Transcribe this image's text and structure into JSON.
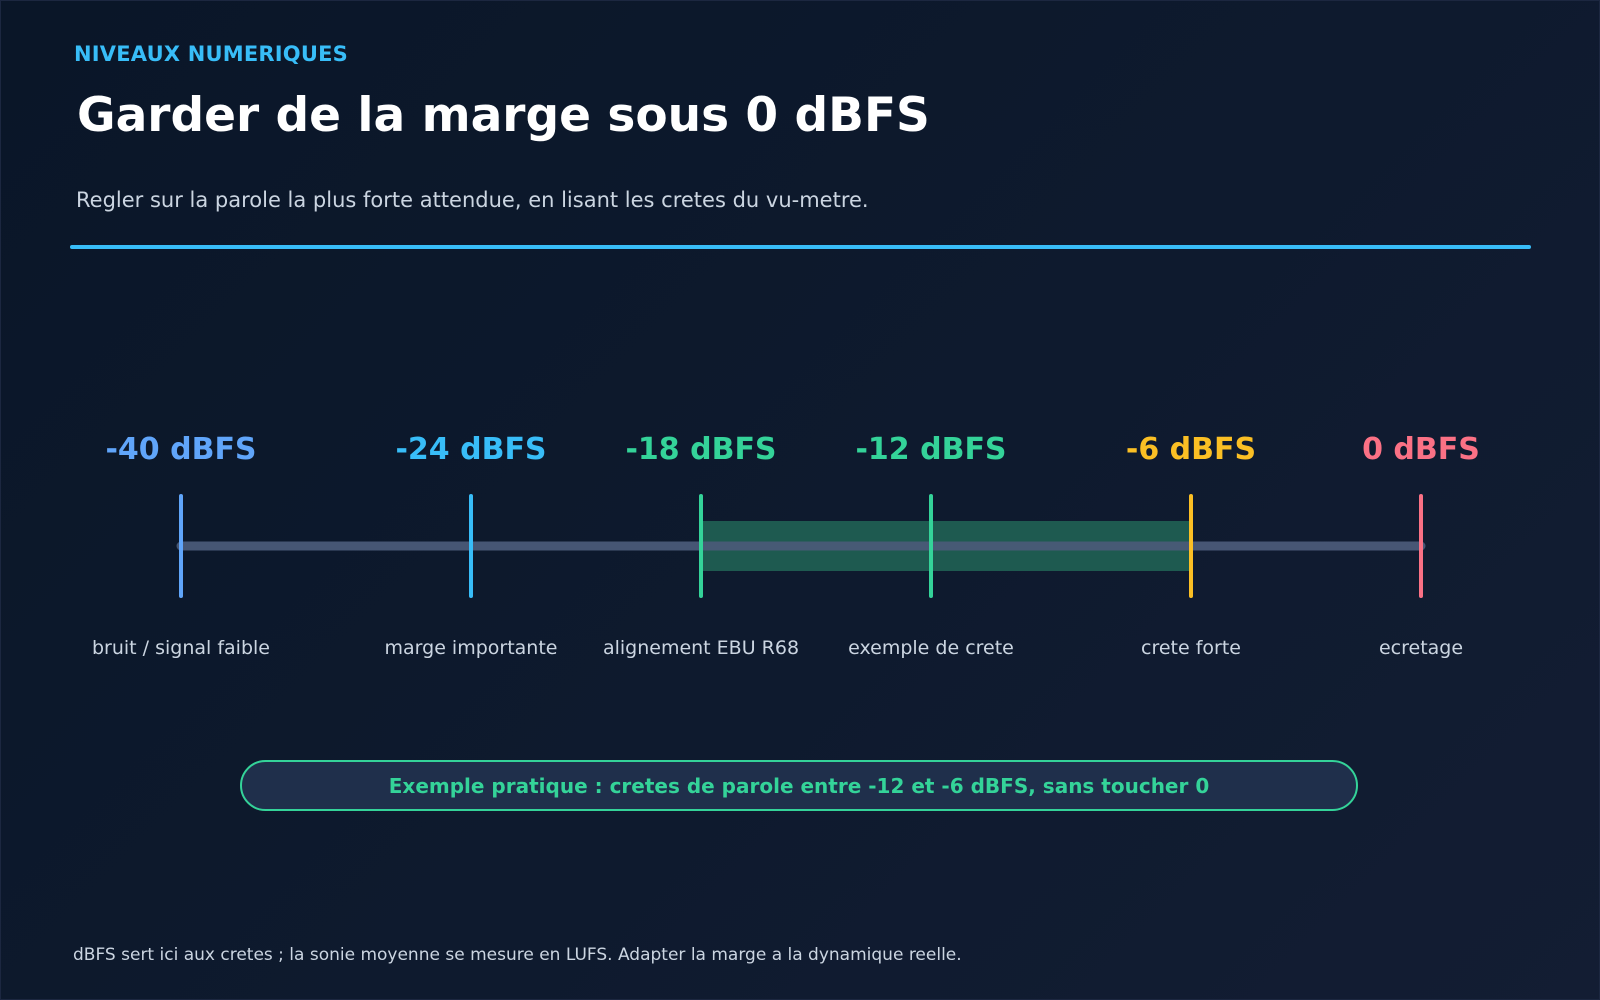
{
  "header": {
    "eyebrow": "NIVEAUX NUMERIQUES",
    "title": "Garder de la marge sous 0 dBFS",
    "subtitle": "Regler sur la parole la plus forte attendue, en lisant les cretes du vu-metre."
  },
  "scale": {
    "unit": "dBFS",
    "marks": [
      {
        "value": -40,
        "label": "-40 dBFS",
        "caption": "bruit / signal faible",
        "color": "#60a5fa"
      },
      {
        "value": -24,
        "label": "-24 dBFS",
        "caption": "marge importante",
        "color": "#38bdf8"
      },
      {
        "value": -18,
        "label": "-18 dBFS",
        "caption": "alignement EBU R68",
        "color": "#34d399"
      },
      {
        "value": -12,
        "label": "-12 dBFS",
        "caption": "exemple de crete",
        "color": "#34d399"
      },
      {
        "value": -6,
        "label": "-6 dBFS",
        "caption": "crete forte",
        "color": "#fbbf24"
      },
      {
        "value": 0,
        "label": "0 dBFS",
        "caption": "ecretage",
        "color": "#fb7185"
      }
    ],
    "highlight_zone": {
      "from": -18,
      "to": -6,
      "color": "#1e5a50"
    },
    "track_color": "#4a5a78"
  },
  "callout": {
    "text": "Exemple pratique : cretes de parole entre -12 et -6 dBFS, sans toucher 0",
    "color": "#34d399"
  },
  "footnote": "dBFS sert ici aux cretes ; la sonie moyenne se mesure en LUFS. Adapter la marge a la dynamique reelle.",
  "colors": {
    "accent": "#38bdf8"
  }
}
